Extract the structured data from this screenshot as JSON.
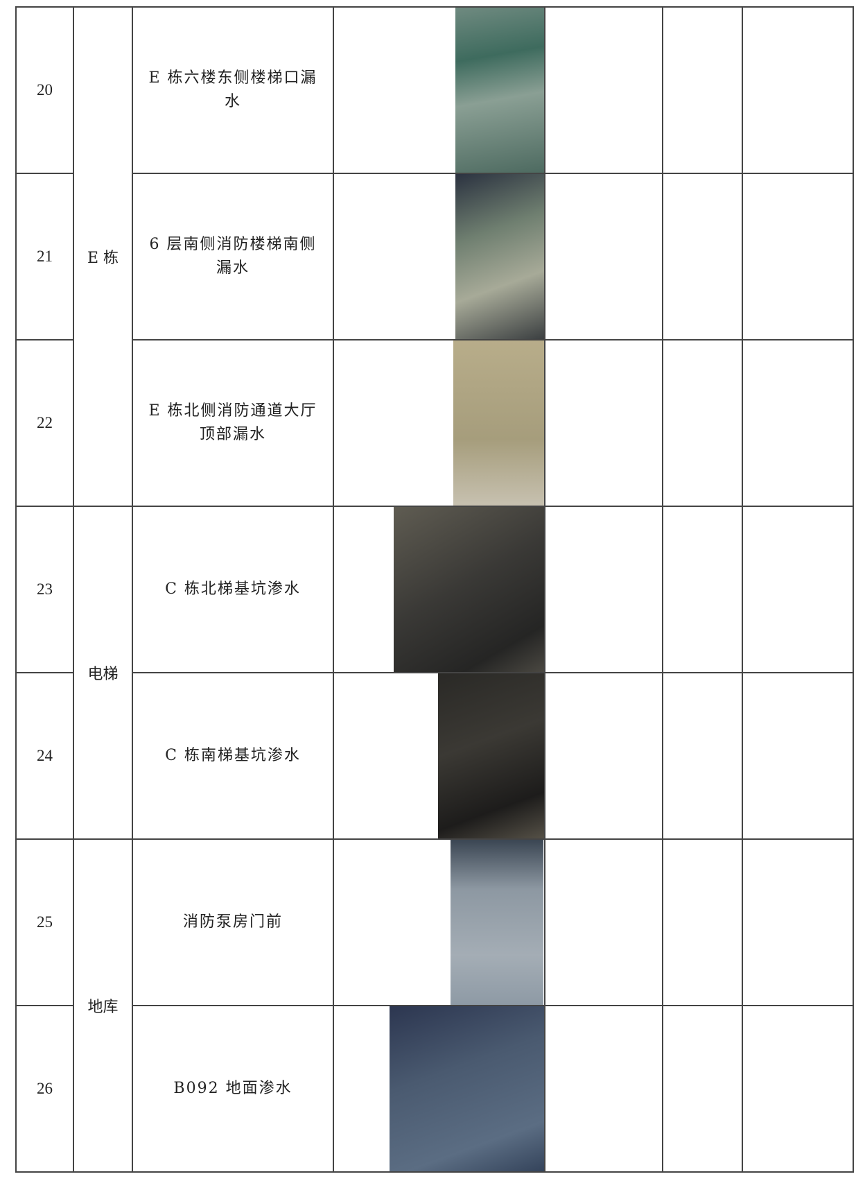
{
  "table": {
    "rows": [
      {
        "number": "20",
        "description": "E 栋六楼东侧楼梯口漏水"
      },
      {
        "number": "21",
        "description": "6 层南侧消防楼梯南侧漏水"
      },
      {
        "number": "22",
        "description": "E 栋北侧消防通道大厅顶部漏水"
      },
      {
        "number": "23",
        "description": "C 栋北梯基坑渗水"
      },
      {
        "number": "24",
        "description": "C 栋南梯基坑渗水"
      },
      {
        "number": "25",
        "description": "消防泵房门前"
      },
      {
        "number": "26",
        "description": "B092 地面渗水"
      }
    ],
    "groups": [
      {
        "label": "E 栋"
      },
      {
        "label": "电梯"
      },
      {
        "label": "地库"
      }
    ]
  }
}
